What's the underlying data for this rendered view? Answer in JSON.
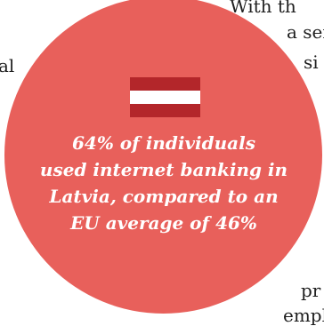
{
  "background_text": {
    "line_1": "With th",
    "line_2": "a ser",
    "line_3": "si",
    "line_4": "al",
    "line_5": "pr",
    "line_6": "empl"
  },
  "callout": {
    "lines": [
      "64% of individuals",
      "used internet banking in",
      "Latvia, compared to an",
      "EU average of 46%"
    ]
  },
  "colors": {
    "circle": "#e8605b",
    "flag_red": "#b3262a",
    "flag_white": "#ffffff",
    "callout_text": "#ffffff"
  },
  "icons": {
    "flag": "latvia-flag-icon"
  }
}
